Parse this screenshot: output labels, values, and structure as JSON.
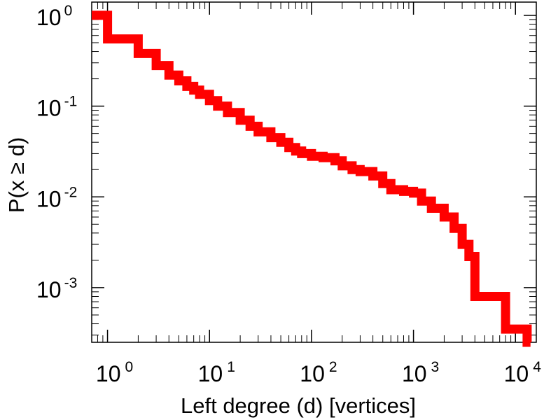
{
  "chart_data": {
    "type": "line",
    "title": "",
    "xlabel": "Left degree (d) [vertices]",
    "ylabel": "P(x ≥ d)",
    "x_scale": "log",
    "y_scale": "log",
    "xlim": [
      0.7,
      16000
    ],
    "ylim": [
      0.00025,
      1.4
    ],
    "grid": false,
    "x_ticks": [
      {
        "value": 1,
        "base": "10",
        "exp": "0"
      },
      {
        "value": 10,
        "base": "10",
        "exp": "1"
      },
      {
        "value": 100,
        "base": "10",
        "exp": "2"
      },
      {
        "value": 1000,
        "base": "10",
        "exp": "3"
      },
      {
        "value": 10000,
        "base": "10",
        "exp": "4"
      }
    ],
    "y_ticks": [
      {
        "value": 1,
        "base": "10",
        "exp": "0"
      },
      {
        "value": 0.1,
        "base": "10",
        "exp": "-1"
      },
      {
        "value": 0.01,
        "base": "10",
        "exp": "-2"
      },
      {
        "value": 0.001,
        "base": "10",
        "exp": "-3"
      }
    ],
    "series": [
      {
        "color": "#ff0000",
        "step": true,
        "x": [
          0.7,
          1,
          2,
          3,
          4,
          5,
          6,
          7,
          8,
          10,
          12,
          15,
          20,
          25,
          30,
          40,
          50,
          60,
          70,
          80,
          100,
          130,
          170,
          200,
          250,
          300,
          400,
          500,
          600,
          800,
          1000,
          1200,
          1500,
          2000,
          2500,
          3000,
          3500,
          4000,
          8000,
          13000
        ],
        "y": [
          1,
          0.55,
          0.38,
          0.28,
          0.22,
          0.19,
          0.165,
          0.15,
          0.135,
          0.115,
          0.1,
          0.085,
          0.07,
          0.06,
          0.052,
          0.045,
          0.04,
          0.035,
          0.032,
          0.03,
          0.028,
          0.027,
          0.025,
          0.022,
          0.02,
          0.019,
          0.017,
          0.014,
          0.012,
          0.0115,
          0.011,
          0.009,
          0.0075,
          0.006,
          0.0045,
          0.003,
          0.0022,
          0.0008,
          0.00035,
          0.00025
        ]
      }
    ]
  }
}
